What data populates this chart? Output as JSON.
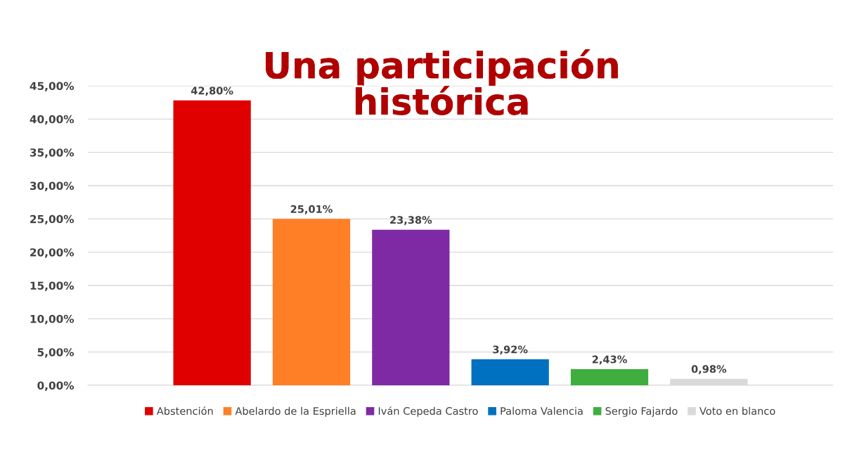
{
  "chart_data": {
    "type": "bar",
    "title": "Una participación\nhistórica",
    "categories": [
      null
    ],
    "series": [
      {
        "name": "Abstención",
        "color": "#e00000",
        "values": [
          42.8
        ],
        "value_labels": [
          "42,80%"
        ]
      },
      {
        "name": "Abelardo de la Espriella",
        "color": "#ff7f27",
        "values": [
          25.01
        ],
        "value_labels": [
          "25,01%"
        ]
      },
      {
        "name": "Iván Cepeda Castro",
        "color": "#7f2aa5",
        "values": [
          23.38
        ],
        "value_labels": [
          "23,38%"
        ]
      },
      {
        "name": "Paloma Valencia",
        "color": "#0070c0",
        "values": [
          3.92
        ],
        "value_labels": [
          "3,92%"
        ]
      },
      {
        "name": "Sergio Fajardo",
        "color": "#3fae3f",
        "values": [
          2.43
        ],
        "value_labels": [
          "2,43%"
        ]
      },
      {
        "name": "Voto en blanco",
        "color": "#d9d9d9",
        "values": [
          0.98
        ],
        "value_labels": [
          "0,98%"
        ]
      }
    ],
    "ylim": [
      0,
      45
    ],
    "yticks": [
      {
        "value": 0,
        "label": "0,00%"
      },
      {
        "value": 5,
        "label": "5,00%"
      },
      {
        "value": 10,
        "label": "10,00%"
      },
      {
        "value": 15,
        "label": "15,00%"
      },
      {
        "value": 20,
        "label": "20,00%"
      },
      {
        "value": 25,
        "label": "25,00%"
      },
      {
        "value": 30,
        "label": "30,00%"
      },
      {
        "value": 35,
        "label": "35,00%"
      },
      {
        "value": 40,
        "label": "40,00%"
      },
      {
        "value": 45,
        "label": "45,00%"
      }
    ],
    "grid": "y",
    "legend": "bottom"
  }
}
